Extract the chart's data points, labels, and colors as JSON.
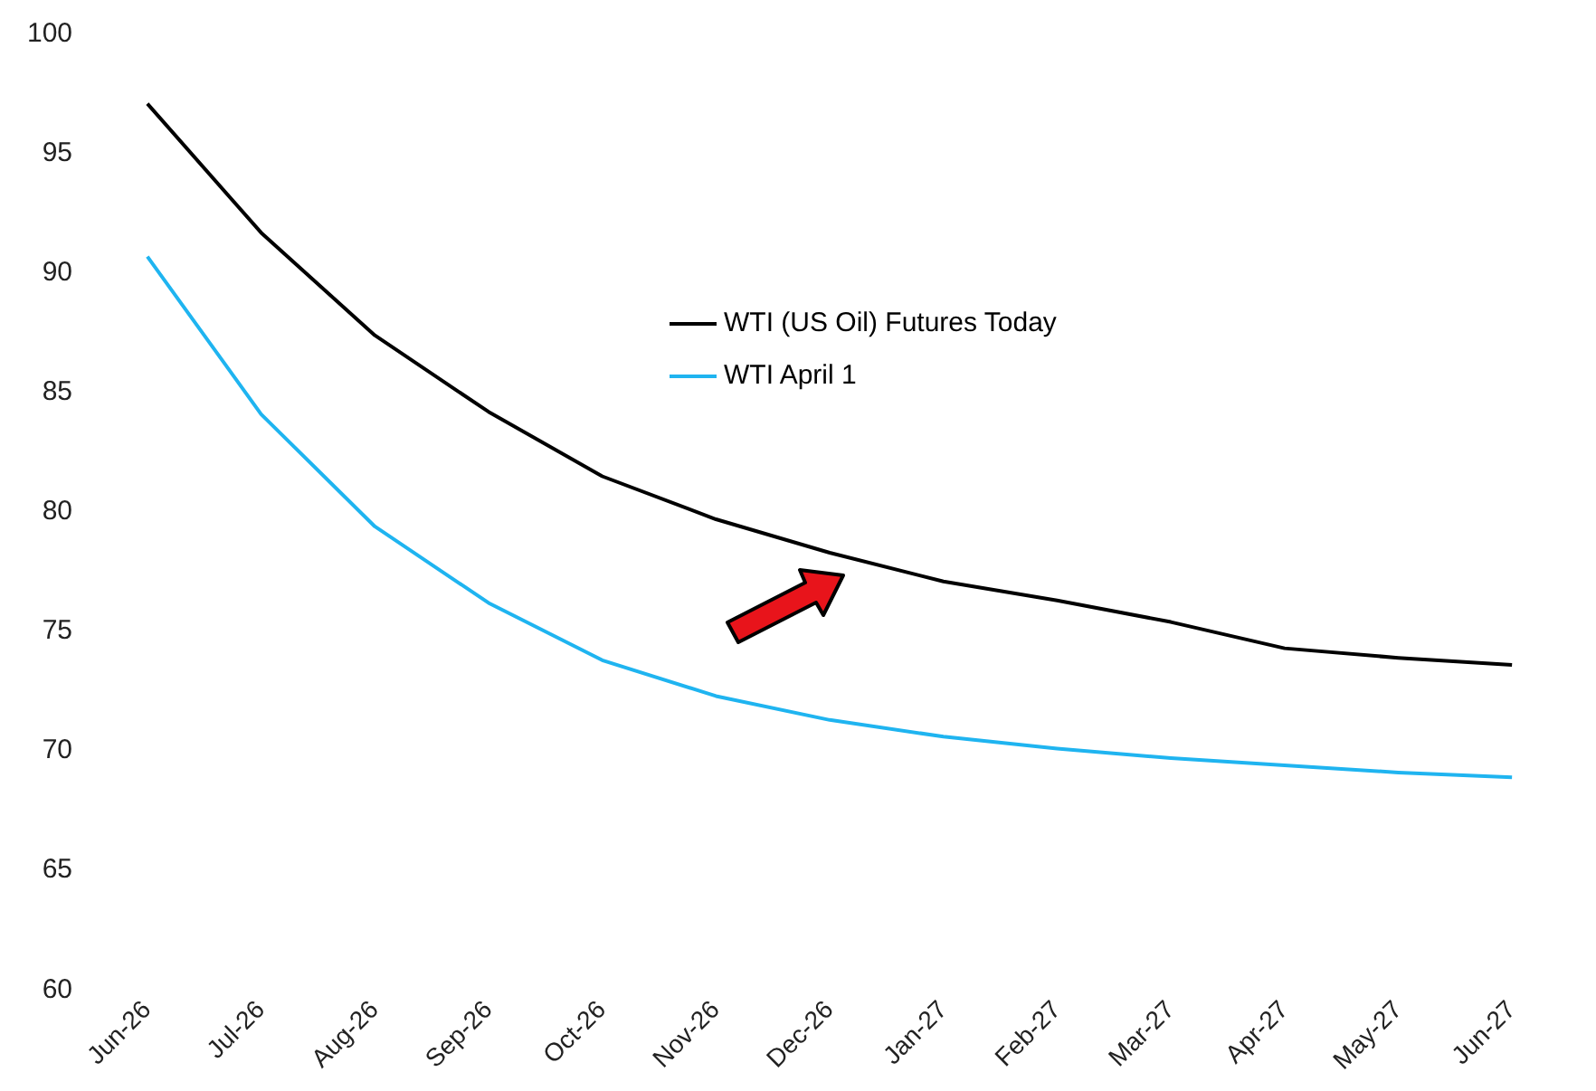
{
  "chart_data": {
    "type": "line",
    "categories": [
      "Jun-26",
      "Jul-26",
      "Aug-26",
      "Sep-26",
      "Oct-26",
      "Nov-26",
      "Dec-26",
      "Jan-27",
      "Feb-27",
      "Mar-27",
      "Apr-27",
      "May-27",
      "Jun-27"
    ],
    "series": [
      {
        "name": "WTI (US Oil) Futures Today",
        "color": "#000000",
        "values": [
          97.1,
          91.7,
          87.4,
          84.2,
          81.5,
          79.7,
          78.3,
          77.1,
          76.3,
          75.4,
          74.3,
          73.9,
          73.6
        ]
      },
      {
        "name": "WTI April 1",
        "color": "#1fb4f0",
        "values": [
          90.7,
          84.1,
          79.4,
          76.2,
          73.8,
          72.3,
          71.3,
          70.6,
          70.1,
          69.7,
          69.4,
          69.1,
          68.9
        ]
      }
    ],
    "ylim": [
      60,
      100
    ],
    "yticks": [
      60,
      65,
      70,
      75,
      80,
      85,
      90,
      95,
      100
    ],
    "grid": false,
    "legend": "top right",
    "marker": "none",
    "line_style": "solid"
  }
}
